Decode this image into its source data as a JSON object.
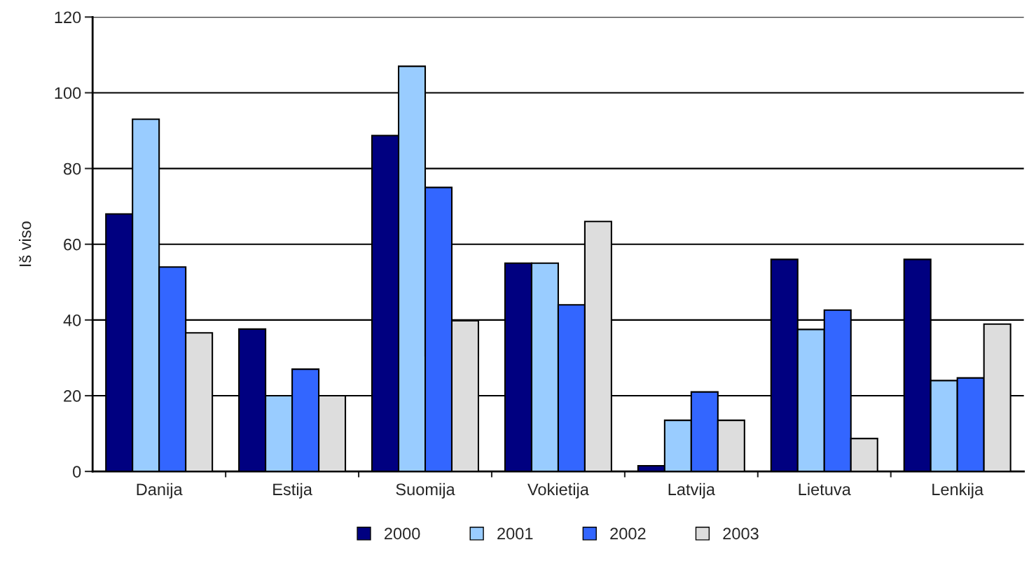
{
  "chart_data": {
    "type": "bar",
    "ylabel": "Iš viso",
    "categories": [
      "Danija",
      "Estija",
      "Suomija",
      "Vokietija",
      "Latvija",
      "Lietuva",
      "Lenkija"
    ],
    "series": [
      {
        "name": "2000",
        "color": "#000080",
        "values": [
          68,
          37.6,
          88.7,
          55,
          1.5,
          56,
          56
        ]
      },
      {
        "name": "2001",
        "color": "#99ccff",
        "values": [
          93,
          20,
          107,
          55,
          13.5,
          37.5,
          24
        ]
      },
      {
        "name": "2002",
        "color": "#3366ff",
        "values": [
          54,
          27,
          75,
          44,
          21,
          42.6,
          24.7
        ]
      },
      {
        "name": "2003",
        "color": "#dddddd",
        "values": [
          36.6,
          20,
          39.8,
          66,
          13.5,
          8.7,
          38.9
        ]
      }
    ],
    "ylim": [
      0,
      120
    ],
    "yticks": [
      0,
      20,
      40,
      60,
      80,
      100,
      120
    ],
    "grid": "y",
    "legend": "bottom"
  }
}
